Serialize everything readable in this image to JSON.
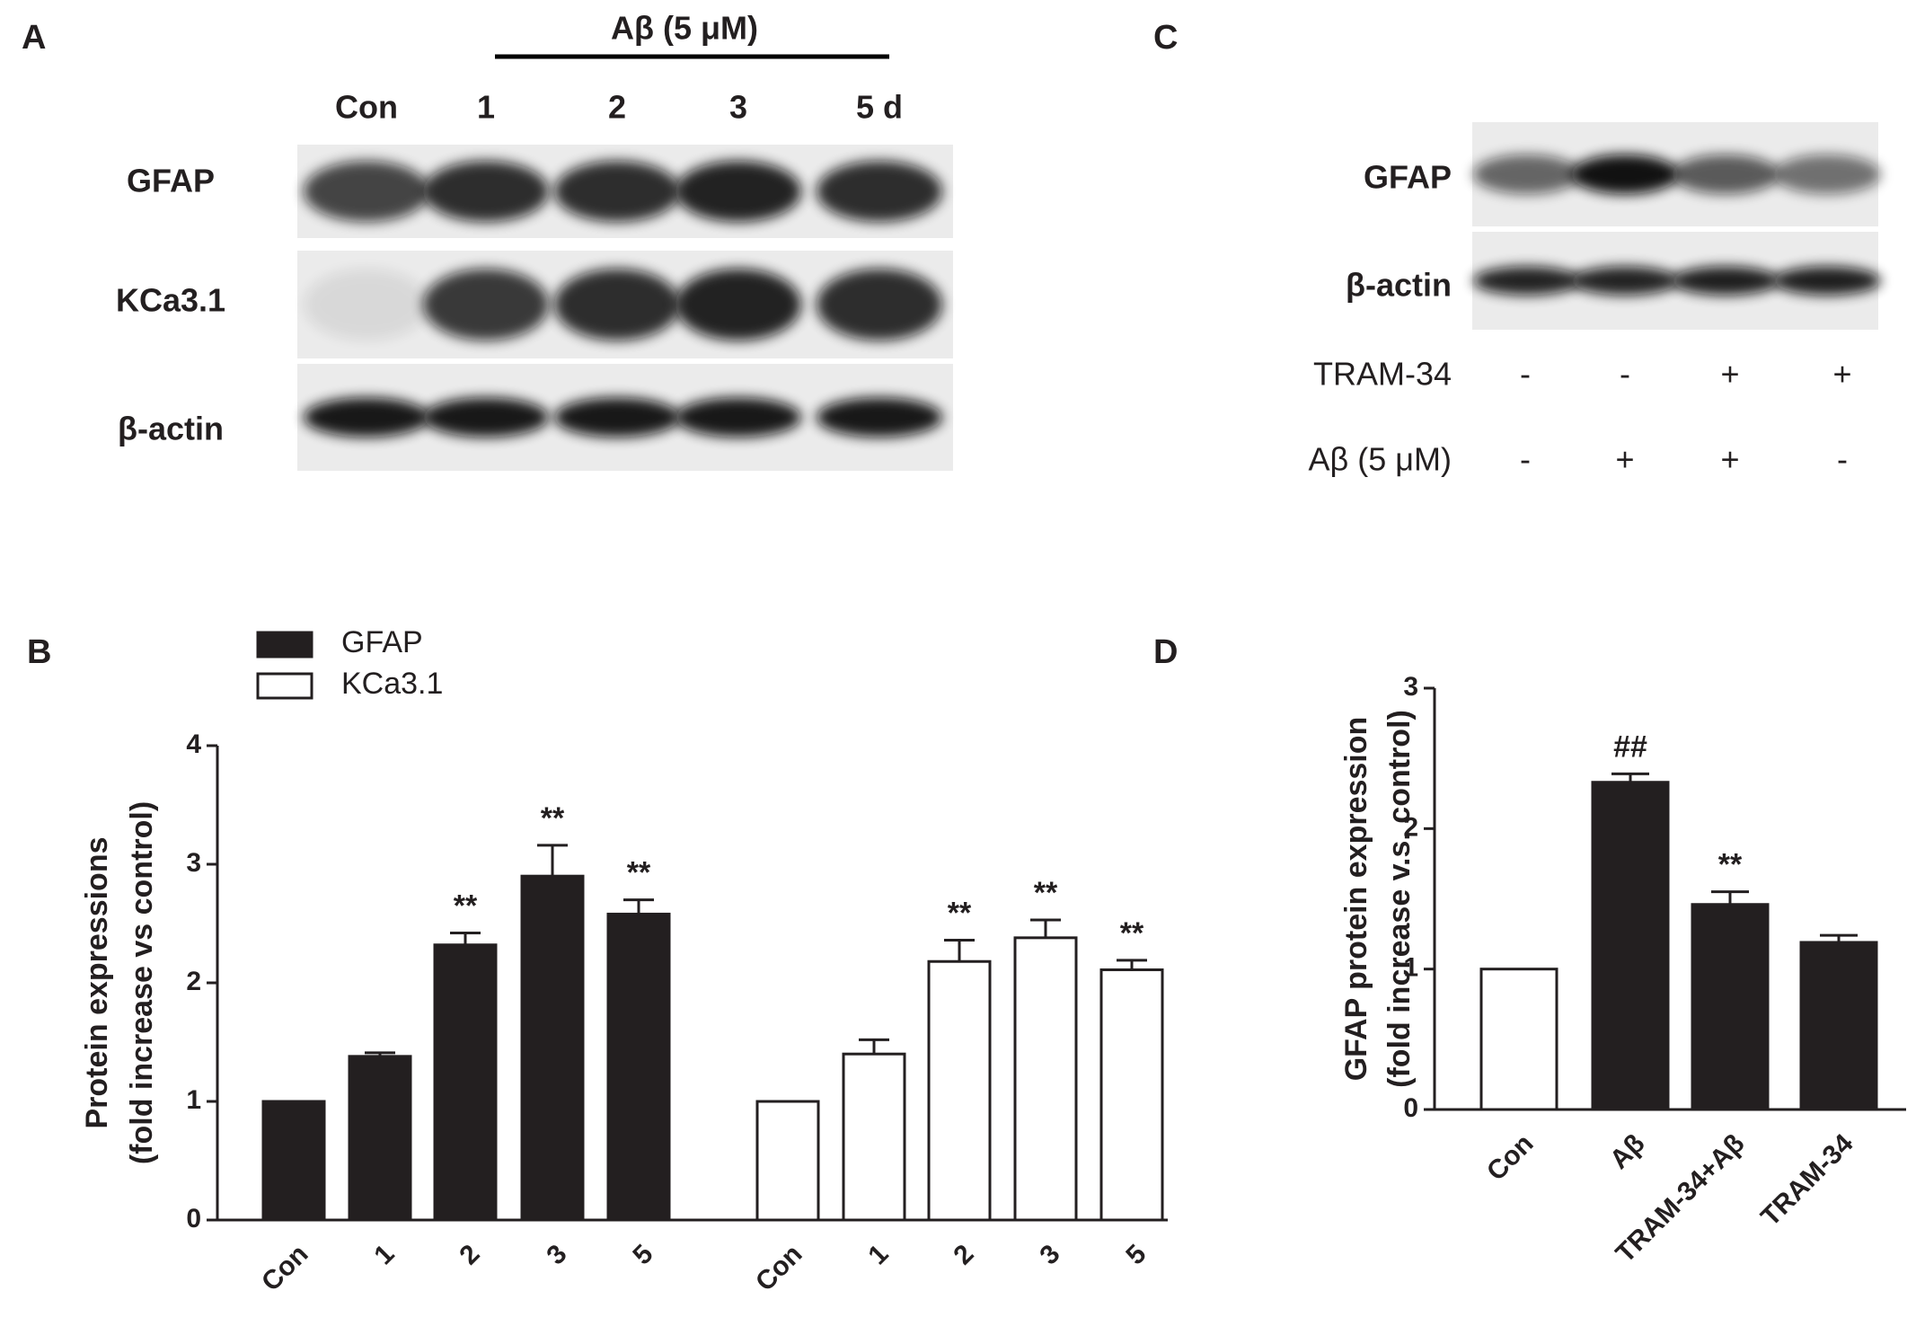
{
  "panel_labels": [
    "A",
    "B",
    "C",
    "D"
  ],
  "blot_a": {
    "header": "Aβ (5 μM)",
    "lanes": [
      "Con",
      "1",
      "2",
      "3",
      "5 d"
    ],
    "rows": [
      "GFAP",
      "KCa3.1",
      "β-actin"
    ]
  },
  "blot_c": {
    "rows": [
      "GFAP",
      "β-actin"
    ],
    "conditions": [
      {
        "label": "TRAM-34",
        "signs": [
          "-",
          "-",
          "+",
          "+"
        ]
      },
      {
        "label": "Aβ (5 μM)",
        "signs": [
          "-",
          "+",
          "+",
          "-"
        ]
      }
    ]
  },
  "chart_data": [
    {
      "type": "bar",
      "ylabel": [
        "Protein expressions",
        "(fold increase vs control)"
      ],
      "categories": [
        "Con",
        "1",
        "2",
        "3",
        "5"
      ],
      "series": [
        {
          "name": "GFAP",
          "color": "#231f20",
          "values": [
            1,
            1.38,
            2.32,
            2.9,
            2.58
          ],
          "errors": [
            0,
            0.03,
            0.1,
            0.26,
            0.12
          ],
          "annotations": [
            null,
            null,
            "**",
            "**",
            "**"
          ]
        },
        {
          "name": "KCa3.1",
          "color": "#ffffff",
          "values": [
            1,
            1.4,
            2.18,
            2.38,
            2.11
          ],
          "errors": [
            0,
            0.12,
            0.18,
            0.15,
            0.08
          ],
          "annotations": [
            null,
            null,
            "**",
            "**",
            "**"
          ]
        }
      ],
      "ylim": [
        0,
        4
      ],
      "yticks": [
        0,
        1,
        2,
        3,
        4
      ],
      "legend": "top-left"
    },
    {
      "type": "bar",
      "ylabel": [
        "GFAP protein expression",
        "(fold increase v.s. control)"
      ],
      "categories": [
        "Con",
        "Aβ",
        "TRAM-34+Aβ",
        "TRAM-34"
      ],
      "values": [
        1,
        2.33,
        1.46,
        1.19
      ],
      "errors": [
        0,
        0.06,
        0.09,
        0.05
      ],
      "colors": [
        "#ffffff",
        "#231f20",
        "#231f20",
        "#231f20"
      ],
      "annotations": [
        null,
        "##",
        "**",
        null
      ],
      "ylim": [
        0,
        3
      ],
      "yticks": [
        0,
        1,
        2,
        3
      ]
    }
  ]
}
